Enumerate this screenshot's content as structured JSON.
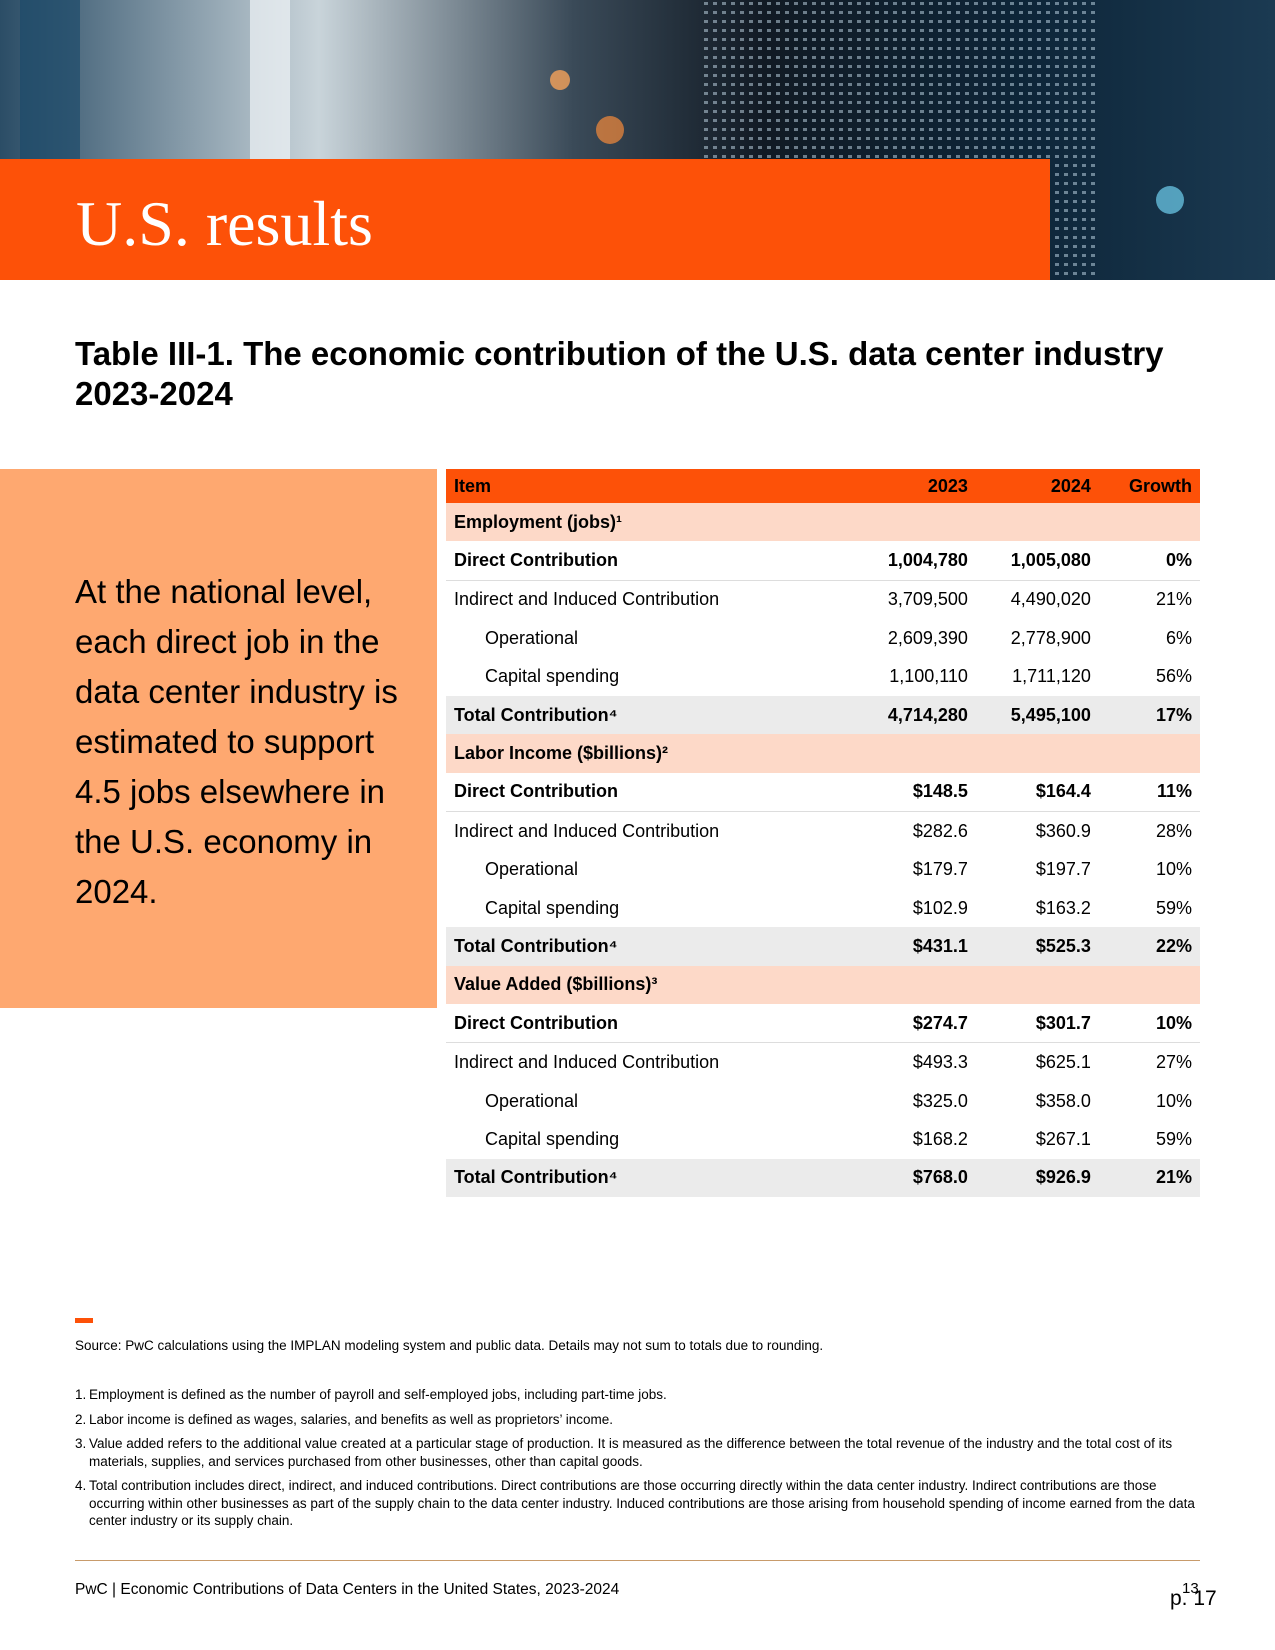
{
  "header": {
    "title": "U.S. results"
  },
  "table": {
    "title": "Table III-1. The economic contribution of the U.S. data center industry 2023-2024",
    "columns": [
      "Item",
      "2023",
      "2024",
      "Growth"
    ],
    "sections": [
      {
        "heading": "Employment (jobs)¹",
        "rows": [
          [
            "Direct Contribution",
            "1,004,780",
            "1,005,080",
            "0%"
          ],
          [
            "Indirect and Induced Contribution",
            "3,709,500",
            "4,490,020",
            "21%"
          ],
          [
            "Operational",
            "2,609,390",
            "2,778,900",
            "6%"
          ],
          [
            "Capital spending",
            "1,100,110",
            "1,711,120",
            "56%"
          ],
          [
            "Total Contribution⁴",
            "4,714,280",
            "5,495,100",
            "17%"
          ]
        ]
      },
      {
        "heading": "Labor Income ($billions)²",
        "rows": [
          [
            "Direct Contribution",
            "$148.5",
            "$164.4",
            "11%"
          ],
          [
            "Indirect and Induced Contribution",
            "$282.6",
            "$360.9",
            "28%"
          ],
          [
            "Operational",
            "$179.7",
            "$197.7",
            "10%"
          ],
          [
            "Capital spending",
            "$102.9",
            "$163.2",
            "59%"
          ],
          [
            "Total Contribution⁴",
            "$431.1",
            "$525.3",
            "22%"
          ]
        ]
      },
      {
        "heading": "Value Added ($billions)³",
        "rows": [
          [
            "Direct Contribution",
            "$274.7",
            "$301.7",
            "10%"
          ],
          [
            "Indirect and Induced Contribution",
            "$493.3",
            "$625.1",
            "27%"
          ],
          [
            "Operational",
            "$325.0",
            "$358.0",
            "10%"
          ],
          [
            "Capital spending",
            "$168.2",
            "$267.1",
            "59%"
          ],
          [
            "Total Contribution⁴",
            "$768.0",
            "$926.9",
            "21%"
          ]
        ]
      }
    ]
  },
  "callout": "At the national level, each direct job in the data center industry is estimated to support 4.5 jobs elsewhere in the U.S. economy in 2024.",
  "source": "Source: PwC calculations using the IMPLAN modeling system and public data. Details may not sum to totals due to rounding.",
  "footnotes": [
    {
      "number": "1.",
      "text": "Employment is defined as the number of payroll and self-employed jobs, including part-time jobs."
    },
    {
      "number": "2.",
      "text": "Labor income is defined as wages, salaries, and benefits as well as proprietors’ income."
    },
    {
      "number": "3.",
      "text": "Value added refers to the additional value created at a particular stage of production. It is measured as the difference between the total revenue of the industry and the total cost of its materials, supplies, and services purchased from other businesses, other than capital goods."
    },
    {
      "number": "4.",
      "text": "Total contribution includes direct, indirect, and induced contributions. Direct contributions are those occurring directly within the data center industry. Indirect contributions are those occurring within other businesses as part of the supply chain to the data center industry. Induced contributions are those arising from household spending of income earned from the data center industry or its supply chain."
    }
  ],
  "footer": {
    "text": "PwC | Economic Contributions of Data Centers in the United States, 2023-2024",
    "page": "13",
    "pdf_page": "p. 17"
  }
}
